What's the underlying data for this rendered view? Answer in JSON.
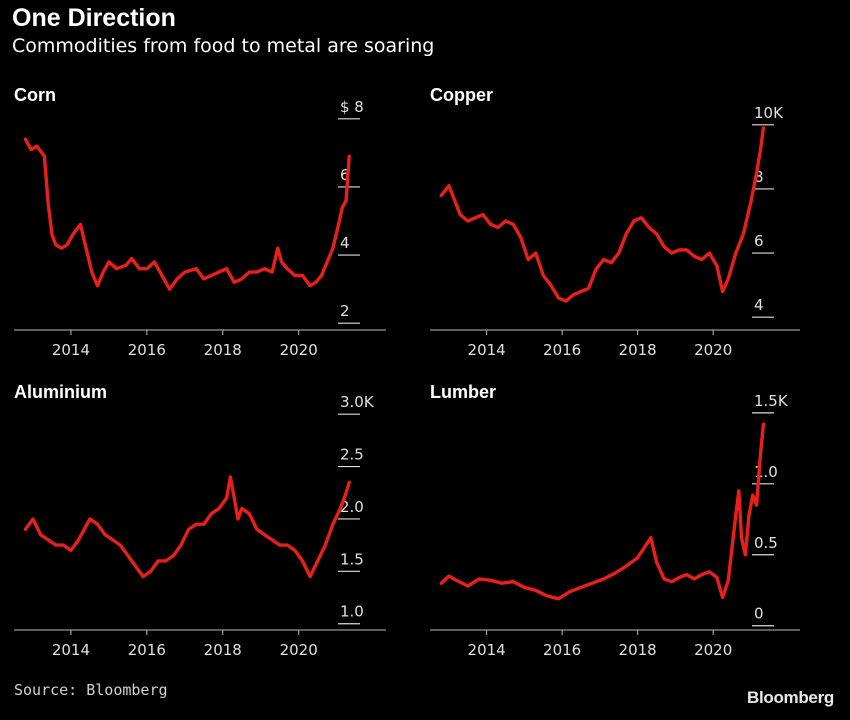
{
  "header": {
    "title": "One Direction",
    "subtitle": "Commodities from food to metal are soaring"
  },
  "footer": {
    "source": "Source: Bloomberg",
    "brand": "Bloomberg"
  },
  "colors": {
    "background": "#000000",
    "line": "#e8201c",
    "text": "#ffffff"
  },
  "chart_data": [
    {
      "type": "line",
      "title": "Corn",
      "xlabel": "",
      "ylabel": "",
      "xlim": [
        2012.5,
        2022.3
      ],
      "ylim": [
        1.8,
        8.2
      ],
      "xticks": [
        {
          "v": 2014,
          "label": "2014"
        },
        {
          "v": 2016,
          "label": "2016"
        },
        {
          "v": 2018,
          "label": "2018"
        },
        {
          "v": 2020,
          "label": "2020"
        }
      ],
      "yticks": [
        {
          "v": 2,
          "label": "2"
        },
        {
          "v": 4,
          "label": "4"
        },
        {
          "v": 6,
          "label": "6"
        },
        {
          "v": 8,
          "label": "$ 8"
        }
      ],
      "series": [
        {
          "x": [
            2012.8,
            2012.95,
            2013.1,
            2013.3,
            2013.4,
            2013.5,
            2013.6,
            2013.75,
            2013.9,
            2014.05,
            2014.25,
            2014.4,
            2014.55,
            2014.7,
            2014.85,
            2015.0,
            2015.2,
            2015.45,
            2015.6,
            2015.8,
            2016.0,
            2016.2,
            2016.4,
            2016.6,
            2016.8,
            2017.0,
            2017.3,
            2017.5,
            2017.7,
            2017.9,
            2018.1,
            2018.3,
            2018.5,
            2018.7,
            2018.9,
            2019.1,
            2019.3,
            2019.45,
            2019.55,
            2019.7,
            2019.9,
            2020.1,
            2020.3,
            2020.45,
            2020.6,
            2020.75,
            2020.9,
            2021.05,
            2021.15,
            2021.25,
            2021.33
          ],
          "y": [
            7.4,
            7.1,
            7.2,
            6.9,
            5.5,
            4.6,
            4.3,
            4.2,
            4.3,
            4.6,
            4.9,
            4.2,
            3.5,
            3.1,
            3.5,
            3.8,
            3.6,
            3.7,
            3.9,
            3.6,
            3.6,
            3.8,
            3.4,
            3.0,
            3.3,
            3.5,
            3.6,
            3.3,
            3.4,
            3.5,
            3.6,
            3.2,
            3.3,
            3.5,
            3.5,
            3.6,
            3.5,
            4.2,
            3.8,
            3.6,
            3.4,
            3.4,
            3.1,
            3.2,
            3.4,
            3.8,
            4.2,
            4.9,
            5.4,
            5.6,
            6.9
          ]
        }
      ]
    },
    {
      "type": "line",
      "title": "Copper",
      "xlabel": "",
      "ylabel": "",
      "xlim": [
        2012.5,
        2022.3
      ],
      "ylim": [
        3.6,
        10.4
      ],
      "xticks": [
        {
          "v": 2014,
          "label": "2014"
        },
        {
          "v": 2016,
          "label": "2016"
        },
        {
          "v": 2018,
          "label": "2018"
        },
        {
          "v": 2020,
          "label": "2020"
        }
      ],
      "yticks": [
        {
          "v": 4,
          "label": "4"
        },
        {
          "v": 6,
          "label": "6"
        },
        {
          "v": 8,
          "label": "8"
        },
        {
          "v": 10,
          "label": "10K"
        }
      ],
      "series": [
        {
          "x": [
            2012.8,
            2013.0,
            2013.1,
            2013.3,
            2013.5,
            2013.7,
            2013.9,
            2014.1,
            2014.3,
            2014.5,
            2014.7,
            2014.9,
            2015.1,
            2015.3,
            2015.5,
            2015.7,
            2015.9,
            2016.1,
            2016.3,
            2016.5,
            2016.7,
            2016.9,
            2017.1,
            2017.3,
            2017.5,
            2017.7,
            2017.9,
            2018.1,
            2018.3,
            2018.5,
            2018.7,
            2018.9,
            2019.1,
            2019.3,
            2019.5,
            2019.7,
            2019.9,
            2020.1,
            2020.25,
            2020.4,
            2020.6,
            2020.8,
            2021.0,
            2021.15,
            2021.25,
            2021.33
          ],
          "y": [
            7.8,
            8.1,
            7.8,
            7.2,
            7.0,
            7.1,
            7.2,
            6.9,
            6.8,
            7.0,
            6.9,
            6.5,
            5.8,
            6.0,
            5.3,
            5.0,
            4.6,
            4.5,
            4.7,
            4.8,
            4.9,
            5.5,
            5.8,
            5.7,
            6.0,
            6.6,
            7.0,
            7.1,
            6.8,
            6.6,
            6.2,
            6.0,
            6.1,
            6.1,
            5.9,
            5.8,
            6.0,
            5.6,
            4.8,
            5.2,
            6.0,
            6.6,
            7.6,
            8.5,
            9.2,
            9.9
          ]
        }
      ]
    },
    {
      "type": "line",
      "title": "Aluminium",
      "xlabel": "",
      "ylabel": "",
      "xlim": [
        2012.5,
        2022.3
      ],
      "ylim": [
        0.94,
        3.04
      ],
      "xticks": [
        {
          "v": 2014,
          "label": "2014"
        },
        {
          "v": 2016,
          "label": "2016"
        },
        {
          "v": 2018,
          "label": "2018"
        },
        {
          "v": 2020,
          "label": "2020"
        }
      ],
      "yticks": [
        {
          "v": 1.0,
          "label": "1.0"
        },
        {
          "v": 1.5,
          "label": "1.5"
        },
        {
          "v": 2.0,
          "label": "2.0"
        },
        {
          "v": 2.5,
          "label": "2.5"
        },
        {
          "v": 3.0,
          "label": "3.0K"
        }
      ],
      "series": [
        {
          "x": [
            2012.8,
            2013.0,
            2013.2,
            2013.4,
            2013.6,
            2013.8,
            2014.0,
            2014.2,
            2014.5,
            2014.7,
            2014.9,
            2015.1,
            2015.3,
            2015.5,
            2015.7,
            2015.9,
            2016.1,
            2016.3,
            2016.5,
            2016.7,
            2016.9,
            2017.1,
            2017.3,
            2017.5,
            2017.7,
            2017.9,
            2018.1,
            2018.2,
            2018.3,
            2018.4,
            2018.5,
            2018.7,
            2018.9,
            2019.1,
            2019.3,
            2019.5,
            2019.7,
            2019.9,
            2020.1,
            2020.3,
            2020.5,
            2020.7,
            2020.9,
            2021.1,
            2021.25,
            2021.33
          ],
          "y": [
            1.9,
            2.0,
            1.85,
            1.8,
            1.75,
            1.75,
            1.7,
            1.8,
            2.0,
            1.95,
            1.85,
            1.8,
            1.75,
            1.65,
            1.55,
            1.45,
            1.5,
            1.6,
            1.6,
            1.65,
            1.75,
            1.9,
            1.95,
            1.95,
            2.05,
            2.1,
            2.2,
            2.4,
            2.2,
            2.0,
            2.1,
            2.05,
            1.9,
            1.85,
            1.8,
            1.75,
            1.75,
            1.7,
            1.6,
            1.45,
            1.6,
            1.75,
            1.95,
            2.1,
            2.25,
            2.35
          ]
        }
      ]
    },
    {
      "type": "line",
      "title": "Lumber",
      "xlabel": "",
      "ylabel": "",
      "xlim": [
        2012.5,
        2022.3
      ],
      "ylim": [
        -0.03,
        1.52
      ],
      "xticks": [
        {
          "v": 2014,
          "label": "2014"
        },
        {
          "v": 2016,
          "label": "2016"
        },
        {
          "v": 2018,
          "label": "2018"
        },
        {
          "v": 2020,
          "label": "2020"
        }
      ],
      "yticks": [
        {
          "v": 0,
          "label": "0"
        },
        {
          "v": 0.5,
          "label": "0.5"
        },
        {
          "v": 1.0,
          "label": "1.0"
        },
        {
          "v": 1.5,
          "label": "1.5K"
        }
      ],
      "series": [
        {
          "x": [
            2012.8,
            2013.0,
            2013.2,
            2013.5,
            2013.8,
            2014.1,
            2014.4,
            2014.7,
            2015.0,
            2015.3,
            2015.6,
            2015.9,
            2016.2,
            2016.5,
            2016.8,
            2017.1,
            2017.4,
            2017.7,
            2018.0,
            2018.2,
            2018.35,
            2018.5,
            2018.7,
            2018.9,
            2019.1,
            2019.3,
            2019.5,
            2019.7,
            2019.9,
            2020.1,
            2020.25,
            2020.4,
            2020.5,
            2020.6,
            2020.68,
            2020.75,
            2020.85,
            2020.95,
            2021.05,
            2021.15,
            2021.25,
            2021.33
          ],
          "y": [
            0.3,
            0.35,
            0.32,
            0.28,
            0.33,
            0.32,
            0.3,
            0.31,
            0.27,
            0.25,
            0.21,
            0.19,
            0.24,
            0.27,
            0.3,
            0.33,
            0.37,
            0.42,
            0.48,
            0.56,
            0.62,
            0.45,
            0.33,
            0.31,
            0.34,
            0.36,
            0.33,
            0.36,
            0.38,
            0.34,
            0.2,
            0.32,
            0.55,
            0.78,
            0.95,
            0.62,
            0.5,
            0.78,
            0.92,
            0.85,
            1.2,
            1.42
          ]
        }
      ]
    }
  ]
}
